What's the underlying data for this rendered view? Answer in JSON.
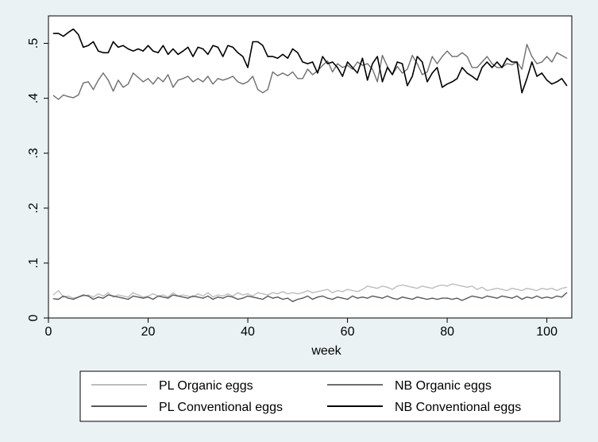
{
  "chart_data": {
    "type": "line",
    "title": "",
    "xlabel": "week",
    "ylabel": "",
    "xlim": [
      0,
      105
    ],
    "ylim": [
      0,
      0.55
    ],
    "x_ticks": [
      0,
      20,
      40,
      60,
      80,
      100
    ],
    "x_tick_labels": [
      "0",
      "20",
      "40",
      "60",
      "80",
      "100"
    ],
    "y_ticks": [
      0,
      0.1,
      0.2,
      0.3,
      0.4,
      0.5
    ],
    "y_tick_labels": [
      "0",
      ".1",
      ".2",
      ".3",
      ".4",
      ".5"
    ],
    "grid": false,
    "legend_position": "bottom",
    "x": [
      1,
      2,
      3,
      4,
      5,
      6,
      7,
      8,
      9,
      10,
      11,
      12,
      13,
      14,
      15,
      16,
      17,
      18,
      19,
      20,
      21,
      22,
      23,
      24,
      25,
      26,
      27,
      28,
      29,
      30,
      31,
      32,
      33,
      34,
      35,
      36,
      37,
      38,
      39,
      40,
      41,
      42,
      43,
      44,
      45,
      46,
      47,
      48,
      49,
      50,
      51,
      52,
      53,
      54,
      55,
      56,
      57,
      58,
      59,
      60,
      61,
      62,
      63,
      64,
      65,
      66,
      67,
      68,
      69,
      70,
      71,
      72,
      73,
      74,
      75,
      76,
      77,
      78,
      79,
      80,
      81,
      82,
      83,
      84,
      85,
      86,
      87,
      88,
      89,
      90,
      91,
      92,
      93,
      94,
      95,
      96,
      97,
      98,
      99,
      100,
      101,
      102,
      103,
      104
    ],
    "series": [
      {
        "name": "PL Organic eggs",
        "color": "#bdbdbd",
        "values": [
          0.042,
          0.05,
          0.038,
          0.04,
          0.036,
          0.038,
          0.04,
          0.042,
          0.038,
          0.044,
          0.04,
          0.046,
          0.038,
          0.042,
          0.04,
          0.038,
          0.046,
          0.042,
          0.038,
          0.04,
          0.044,
          0.04,
          0.042,
          0.038,
          0.046,
          0.04,
          0.042,
          0.04,
          0.038,
          0.044,
          0.04,
          0.046,
          0.038,
          0.042,
          0.04,
          0.044,
          0.04,
          0.046,
          0.042,
          0.044,
          0.04,
          0.046,
          0.044,
          0.042,
          0.046,
          0.044,
          0.048,
          0.044,
          0.046,
          0.044,
          0.046,
          0.05,
          0.046,
          0.048,
          0.05,
          0.052,
          0.046,
          0.05,
          0.048,
          0.052,
          0.05,
          0.048,
          0.052,
          0.058,
          0.056,
          0.054,
          0.058,
          0.056,
          0.052,
          0.058,
          0.06,
          0.058,
          0.056,
          0.054,
          0.058,
          0.056,
          0.054,
          0.058,
          0.06,
          0.058,
          0.062,
          0.06,
          0.058,
          0.056,
          0.058,
          0.052,
          0.056,
          0.05,
          0.052,
          0.054,
          0.052,
          0.05,
          0.054,
          0.052,
          0.05,
          0.054,
          0.052,
          0.05,
          0.054,
          0.052,
          0.054,
          0.05,
          0.054,
          0.056
        ]
      },
      {
        "name": "NB Organic eggs",
        "color": "#6e6e6e",
        "values": [
          0.405,
          0.398,
          0.406,
          0.403,
          0.401,
          0.406,
          0.428,
          0.43,
          0.416,
          0.433,
          0.446,
          0.433,
          0.413,
          0.433,
          0.42,
          0.426,
          0.446,
          0.438,
          0.43,
          0.436,
          0.426,
          0.438,
          0.43,
          0.443,
          0.42,
          0.433,
          0.436,
          0.44,
          0.43,
          0.436,
          0.43,
          0.44,
          0.426,
          0.436,
          0.433,
          0.436,
          0.44,
          0.43,
          0.426,
          0.43,
          0.44,
          0.416,
          0.41,
          0.416,
          0.448,
          0.441,
          0.446,
          0.441,
          0.448,
          0.436,
          0.436,
          0.453,
          0.443,
          0.45,
          0.46,
          0.468,
          0.448,
          0.463,
          0.456,
          0.46,
          0.453,
          0.466,
          0.46,
          0.463,
          0.453,
          0.43,
          0.478,
          0.458,
          0.443,
          0.458,
          0.446,
          0.453,
          0.478,
          0.463,
          0.443,
          0.448,
          0.476,
          0.463,
          0.476,
          0.486,
          0.476,
          0.476,
          0.483,
          0.476,
          0.456,
          0.456,
          0.466,
          0.476,
          0.463,
          0.456,
          0.456,
          0.463,
          0.461,
          0.466,
          0.453,
          0.498,
          0.476,
          0.463,
          0.466,
          0.476,
          0.466,
          0.483,
          0.478,
          0.473
        ]
      },
      {
        "name": "PL Conventional eggs",
        "color": "#585858",
        "values": [
          0.035,
          0.034,
          0.04,
          0.036,
          0.034,
          0.038,
          0.042,
          0.04,
          0.034,
          0.038,
          0.036,
          0.042,
          0.04,
          0.038,
          0.036,
          0.034,
          0.04,
          0.038,
          0.036,
          0.038,
          0.034,
          0.04,
          0.038,
          0.036,
          0.042,
          0.04,
          0.038,
          0.036,
          0.04,
          0.038,
          0.036,
          0.04,
          0.034,
          0.038,
          0.036,
          0.04,
          0.038,
          0.034,
          0.036,
          0.04,
          0.038,
          0.036,
          0.034,
          0.04,
          0.036,
          0.038,
          0.034,
          0.036,
          0.03,
          0.034,
          0.036,
          0.04,
          0.034,
          0.038,
          0.04,
          0.036,
          0.034,
          0.038,
          0.036,
          0.034,
          0.04,
          0.036,
          0.038,
          0.036,
          0.04,
          0.038,
          0.036,
          0.04,
          0.036,
          0.034,
          0.038,
          0.036,
          0.034,
          0.038,
          0.036,
          0.034,
          0.036,
          0.034,
          0.036,
          0.036,
          0.034,
          0.036,
          0.032,
          0.036,
          0.04,
          0.038,
          0.036,
          0.04,
          0.038,
          0.036,
          0.04,
          0.038,
          0.036,
          0.04,
          0.034,
          0.038,
          0.036,
          0.04,
          0.036,
          0.038,
          0.036,
          0.04,
          0.038,
          0.046
        ]
      },
      {
        "name": "NB Conventional eggs",
        "color": "#000000",
        "values": [
          0.518,
          0.518,
          0.513,
          0.52,
          0.526,
          0.516,
          0.493,
          0.496,
          0.503,
          0.486,
          0.483,
          0.483,
          0.503,
          0.493,
          0.496,
          0.49,
          0.486,
          0.49,
          0.486,
          0.496,
          0.486,
          0.483,
          0.496,
          0.48,
          0.49,
          0.48,
          0.486,
          0.493,
          0.476,
          0.493,
          0.49,
          0.48,
          0.496,
          0.493,
          0.476,
          0.496,
          0.493,
          0.483,
          0.476,
          0.456,
          0.503,
          0.503,
          0.496,
          0.476,
          0.476,
          0.473,
          0.48,
          0.473,
          0.49,
          0.483,
          0.466,
          0.463,
          0.466,
          0.446,
          0.476,
          0.463,
          0.466,
          0.456,
          0.44,
          0.466,
          0.456,
          0.446,
          0.473,
          0.433,
          0.463,
          0.476,
          0.43,
          0.456,
          0.443,
          0.466,
          0.463,
          0.423,
          0.44,
          0.476,
          0.466,
          0.43,
          0.446,
          0.456,
          0.42,
          0.426,
          0.43,
          0.436,
          0.456,
          0.446,
          0.44,
          0.433,
          0.456,
          0.466,
          0.456,
          0.466,
          0.456,
          0.473,
          0.466,
          0.466,
          0.41,
          0.436,
          0.466,
          0.44,
          0.446,
          0.433,
          0.426,
          0.43,
          0.436,
          0.423
        ]
      }
    ]
  }
}
